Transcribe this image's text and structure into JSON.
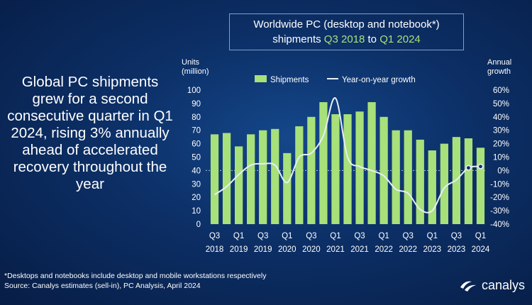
{
  "headline": "Global PC shipments grew for a second consecutive quarter in Q1 2024, rising 3% annually ahead of accelerated recovery throughout the year",
  "title": {
    "line1": "Worldwide PC (desktop and notebook*)",
    "line2_prefix": "shipments ",
    "line2_from": "Q3 2018",
    "line2_mid": " to ",
    "line2_to": "Q1 2024"
  },
  "footnote_line1": "*Desktops and notebooks  include desktop and mobile workstations respectively",
  "footnote_line2": "Source: Canalys estimates (sell-in), PC Analysis, April 2024",
  "logo_text": "canalys",
  "colors": {
    "bar": "#a8e07a",
    "line": "#e8eef6",
    "highlight": "#a8e07a"
  },
  "chart_data": {
    "type": "bar",
    "y_label_left": [
      "Units",
      "(million)"
    ],
    "y_label_right": [
      "Annual",
      "growth"
    ],
    "ylim": [
      0,
      100
    ],
    "y_ticks": [
      "0",
      "10",
      "20",
      "30",
      "40",
      "50",
      "60",
      "70",
      "80",
      "90",
      "100"
    ],
    "y2lim": [
      -40,
      60
    ],
    "y2_ticks": [
      "-40%",
      "-30%",
      "-20%",
      "-10%",
      "0%",
      "10%",
      "20%",
      "30%",
      "40%",
      "50%",
      "60%"
    ],
    "grid": false,
    "legend_position": "top",
    "categories": [
      "Q3 2018",
      "Q4 2018",
      "Q1 2019",
      "Q2 2019",
      "Q3 2019",
      "Q4 2019",
      "Q1 2020",
      "Q2 2020",
      "Q3 2020",
      "Q4 2020",
      "Q1 2021",
      "Q2 2021",
      "Q3 2021",
      "Q4 2021",
      "Q1 2022",
      "Q2 2022",
      "Q3 2022",
      "Q4 2022",
      "Q1 2023",
      "Q2 2023",
      "Q3 2023",
      "Q4 2023",
      "Q1 2024"
    ],
    "x_tick_labels": [
      {
        "index": 0,
        "q": "Q3",
        "year": "2018"
      },
      {
        "index": 2,
        "q": "Q1",
        "year": "2019"
      },
      {
        "index": 4,
        "q": "Q3",
        "year": "2019"
      },
      {
        "index": 6,
        "q": "Q1",
        "year": "2020"
      },
      {
        "index": 8,
        "q": "Q3",
        "year": "2020"
      },
      {
        "index": 10,
        "q": "Q1",
        "year": "2021"
      },
      {
        "index": 12,
        "q": "Q3",
        "year": "2021"
      },
      {
        "index": 14,
        "q": "Q1",
        "year": "2022"
      },
      {
        "index": 16,
        "q": "Q3",
        "year": "2022"
      },
      {
        "index": 18,
        "q": "Q1",
        "year": "2023"
      },
      {
        "index": 20,
        "q": "Q3",
        "year": "2023"
      },
      {
        "index": 22,
        "q": "Q1",
        "year": "2024"
      }
    ],
    "series": [
      {
        "name": "Shipments",
        "type": "bar",
        "axis": "left",
        "values": [
          67,
          68,
          58,
          67,
          70,
          71,
          53,
          73,
          80,
          91,
          82,
          82,
          84,
          91,
          80,
          70,
          70,
          63,
          55,
          60,
          65,
          64,
          57
        ]
      },
      {
        "name": "Year-on-year growth",
        "type": "line",
        "axis": "right",
        "values": [
          -18,
          -12,
          -3,
          4,
          5,
          4,
          -9,
          10,
          13,
          26,
          54,
          10,
          3,
          0,
          -4,
          -14,
          -17,
          -29,
          -30,
          -13,
          -7,
          2,
          3
        ],
        "markers": [
          21,
          22
        ]
      }
    ]
  }
}
